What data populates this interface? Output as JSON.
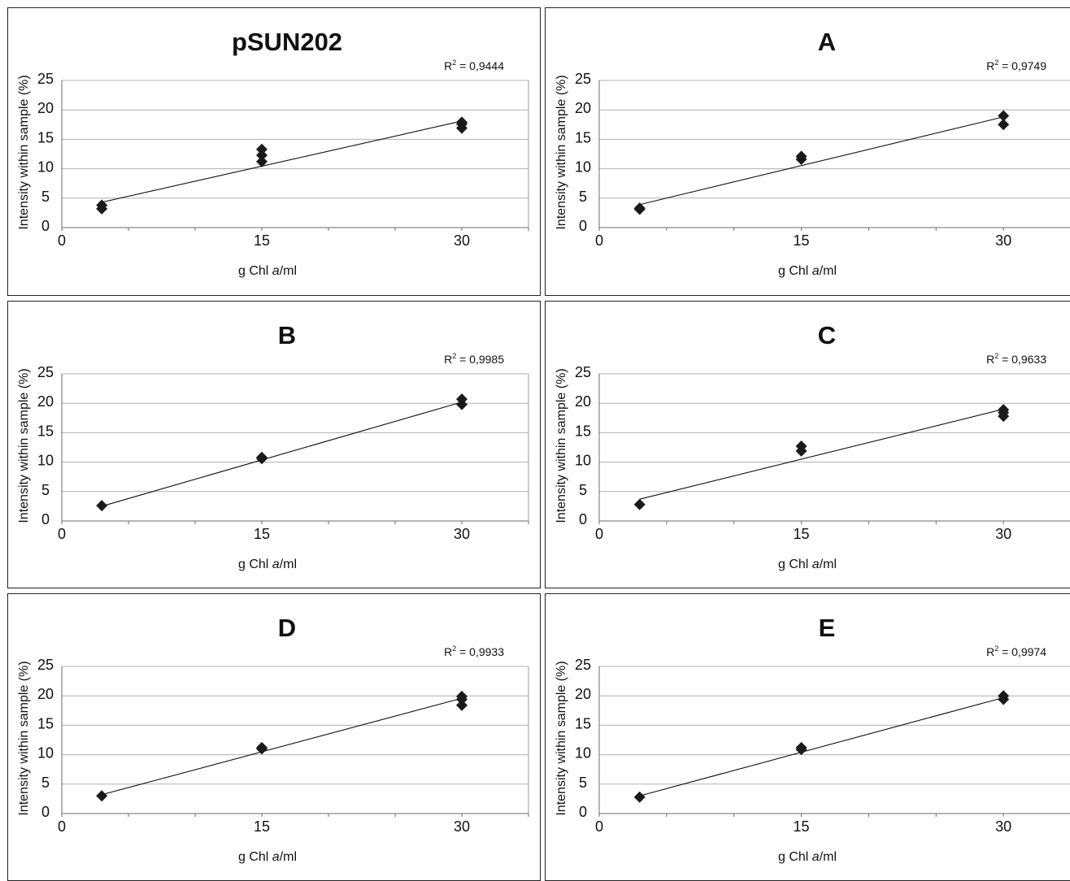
{
  "chart_data": [
    {
      "type": "scatter",
      "title": "pSUN202",
      "r2_label": "R",
      "r2_sup": "2",
      "r2_value": " = 0,9444",
      "xlabel": "g Chl ",
      "xlabel_italic": "a",
      "xlabel_tail": "/ml",
      "ylabel": "Intensity within sample (%)",
      "xticks": [
        "0",
        "15",
        "30"
      ],
      "yticks": [
        "0",
        "5",
        "10",
        "15",
        "20",
        "25"
      ],
      "xlim": [
        0,
        35
      ],
      "ylim": [
        0,
        25
      ],
      "grid": "horizontal",
      "points": [
        [
          3,
          3.2
        ],
        [
          3,
          3.8
        ],
        [
          15,
          11.2
        ],
        [
          15,
          12.3
        ],
        [
          15,
          13.3
        ],
        [
          30,
          16.9
        ],
        [
          30,
          17.6
        ],
        [
          30,
          17.9
        ]
      ],
      "trendline": [
        [
          3,
          4.3
        ],
        [
          30,
          18.1
        ]
      ]
    },
    {
      "type": "scatter",
      "title": "A",
      "r2_label": "R",
      "r2_sup": "2",
      "r2_value": " = 0,9749",
      "xlabel": "g Chl ",
      "xlabel_italic": "a",
      "xlabel_tail": "/ml",
      "ylabel": "Intensity within sample (%)",
      "xticks": [
        "0",
        "15",
        "30"
      ],
      "yticks": [
        "0",
        "5",
        "10",
        "15",
        "20",
        "25"
      ],
      "xlim": [
        0,
        35
      ],
      "ylim": [
        0,
        25
      ],
      "grid": "horizontal",
      "points": [
        [
          3,
          3.1
        ],
        [
          3,
          3.3
        ],
        [
          15,
          11.6
        ],
        [
          15,
          12.1
        ],
        [
          30,
          17.5
        ],
        [
          30,
          19.0
        ]
      ],
      "trendline": [
        [
          3,
          3.9
        ],
        [
          30,
          18.8
        ]
      ]
    },
    {
      "type": "scatter",
      "title": "B",
      "r2_label": "R",
      "r2_sup": "2",
      "r2_value": " = 0,9985",
      "xlabel": "g Chl ",
      "xlabel_italic": "a",
      "xlabel_tail": "/ml",
      "ylabel": "Intensity within sample (%)",
      "xticks": [
        "0",
        "15",
        "30"
      ],
      "yticks": [
        "0",
        "5",
        "10",
        "15",
        "20",
        "25"
      ],
      "xlim": [
        0,
        35
      ],
      "ylim": [
        0,
        25
      ],
      "grid": "horizontal",
      "points": [
        [
          3,
          2.6
        ],
        [
          15,
          10.6
        ],
        [
          15,
          10.8
        ],
        [
          30,
          19.8
        ],
        [
          30,
          20.7
        ]
      ],
      "trendline": [
        [
          3,
          2.5
        ],
        [
          30,
          20.2
        ]
      ]
    },
    {
      "type": "scatter",
      "title": "C",
      "r2_label": "R",
      "r2_sup": "2",
      "r2_value": " = 0,9633",
      "xlabel": "g Chl ",
      "xlabel_italic": "a",
      "xlabel_tail": "/ml",
      "ylabel": "Intensity within sample (%)",
      "xticks": [
        "0",
        "15",
        "30"
      ],
      "yticks": [
        "0",
        "5",
        "10",
        "15",
        "20",
        "25"
      ],
      "xlim": [
        0,
        35
      ],
      "ylim": [
        0,
        25
      ],
      "grid": "horizontal",
      "points": [
        [
          3,
          2.8
        ],
        [
          15,
          11.9
        ],
        [
          15,
          12.7
        ],
        [
          30,
          17.8
        ],
        [
          30,
          18.4
        ],
        [
          30,
          18.9
        ]
      ],
      "trendline": [
        [
          3,
          3.7
        ],
        [
          30,
          19.0
        ]
      ]
    },
    {
      "type": "scatter",
      "title": "D",
      "r2_label": "R",
      "r2_sup": "2",
      "r2_value": " = 0,9933",
      "xlabel": "g Chl ",
      "xlabel_italic": "a",
      "xlabel_tail": "/ml",
      "ylabel": "Intensity within sample (%)",
      "xticks": [
        "0",
        "15",
        "30"
      ],
      "yticks": [
        "0",
        "5",
        "10",
        "15",
        "20",
        "25"
      ],
      "xlim": [
        0,
        35
      ],
      "ylim": [
        0,
        25
      ],
      "grid": "horizontal",
      "points": [
        [
          3,
          3.0
        ],
        [
          15,
          11.0
        ],
        [
          15,
          11.2
        ],
        [
          30,
          18.4
        ],
        [
          30,
          19.4
        ],
        [
          30,
          19.9
        ]
      ],
      "trendline": [
        [
          3,
          3.2
        ],
        [
          30,
          19.6
        ]
      ]
    },
    {
      "type": "scatter",
      "title": "E",
      "r2_label": "R",
      "r2_sup": "2",
      "r2_value": " = 0,9974",
      "xlabel": "g Chl ",
      "xlabel_italic": "a",
      "xlabel_tail": "/ml",
      "ylabel": "Intensity within sample (%)",
      "xticks": [
        "0",
        "15",
        "30"
      ],
      "yticks": [
        "0",
        "5",
        "10",
        "15",
        "20",
        "25"
      ],
      "xlim": [
        0,
        35
      ],
      "ylim": [
        0,
        25
      ],
      "grid": "horizontal",
      "points": [
        [
          3,
          2.8
        ],
        [
          15,
          10.9
        ],
        [
          15,
          11.2
        ],
        [
          30,
          19.4
        ],
        [
          30,
          20.0
        ]
      ],
      "trendline": [
        [
          3,
          3.0
        ],
        [
          30,
          19.7
        ]
      ]
    }
  ],
  "colors": {
    "marker": "#1a1a1a",
    "line": "#111111",
    "gridline": "#b0b0b0",
    "border": "#222222"
  }
}
